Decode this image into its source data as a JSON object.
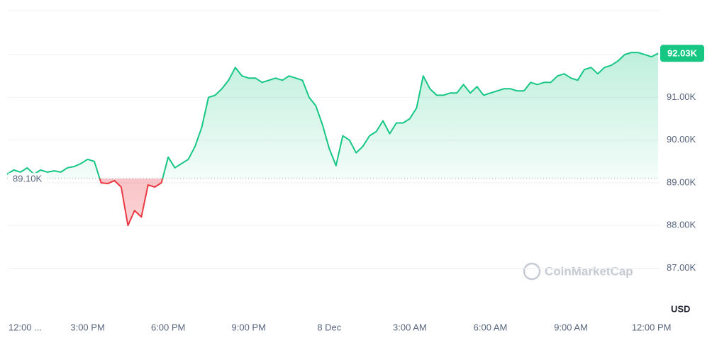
{
  "chart_data": {
    "type": "line",
    "x": [
      0,
      0.25,
      0.5,
      0.75,
      1,
      1.25,
      1.5,
      1.75,
      2,
      2.25,
      2.5,
      2.75,
      3,
      3.25,
      3.5,
      3.75,
      4,
      4.25,
      4.5,
      4.75,
      5,
      5.25,
      5.5,
      5.75,
      6,
      6.25,
      6.5,
      6.75,
      7,
      7.25,
      7.5,
      7.75,
      8,
      8.25,
      8.5,
      8.75,
      9,
      9.25,
      9.5,
      9.75,
      10,
      10.25,
      10.5,
      10.75,
      11,
      11.25,
      11.5,
      11.75,
      12,
      12.25,
      12.5,
      12.75,
      13,
      13.25,
      13.5,
      13.75,
      14,
      14.25,
      14.5,
      14.75,
      15,
      15.25,
      15.5,
      15.75,
      16,
      16.25,
      16.5,
      16.75,
      17,
      17.25,
      17.5,
      17.75,
      18,
      18.25,
      18.5,
      18.75,
      19,
      19.25,
      19.5,
      19.75,
      20,
      20.25,
      20.5,
      20.75,
      21,
      21.25,
      21.5,
      21.75,
      22,
      22.25,
      22.5,
      22.75,
      23,
      23.25,
      23.5,
      23.75,
      24,
      24.25
    ],
    "values": [
      89200,
      89300,
      89250,
      89350,
      89200,
      89300,
      89250,
      89280,
      89250,
      89350,
      89380,
      89450,
      89550,
      89500,
      89000,
      88980,
      89050,
      88900,
      88000,
      88350,
      88200,
      88950,
      88900,
      89000,
      89600,
      89350,
      89450,
      89550,
      89850,
      90300,
      91000,
      91050,
      91200,
      91400,
      91700,
      91500,
      91450,
      91450,
      91350,
      91400,
      91450,
      91400,
      91500,
      91450,
      91400,
      91000,
      90800,
      90350,
      89800,
      89400,
      90100,
      90000,
      89700,
      89850,
      90100,
      90200,
      90450,
      90150,
      90400,
      90400,
      90500,
      90750,
      91500,
      91200,
      91050,
      91050,
      91100,
      91100,
      91300,
      91100,
      91250,
      91050,
      91100,
      91150,
      91200,
      91200,
      91150,
      91150,
      91350,
      91300,
      91350,
      91350,
      91500,
      91550,
      91450,
      91400,
      91650,
      91700,
      91550,
      91700,
      91750,
      91850,
      92000,
      92050,
      92050,
      92000,
      91950,
      92030
    ],
    "xlim": [
      0,
      24.3
    ],
    "xticks": [
      {
        "value": 0,
        "label": "12:00 ..."
      },
      {
        "value": 3,
        "label": "3:00 PM"
      },
      {
        "value": 6,
        "label": "6:00 PM"
      },
      {
        "value": 9,
        "label": "9:00 PM"
      },
      {
        "value": 12,
        "label": "8 Dec"
      },
      {
        "value": 15,
        "label": "3:00 AM"
      },
      {
        "value": 18,
        "label": "6:00 AM"
      },
      {
        "value": 21,
        "label": "9:00 AM"
      },
      {
        "value": 24,
        "label": "12:00 PM"
      }
    ],
    "ylim": [
      85980,
      93030
    ],
    "yticks": [
      {
        "value": 87000,
        "label": "87.00K"
      },
      {
        "value": 88000,
        "label": "88.00K"
      },
      {
        "value": 89000,
        "label": "89.00K"
      },
      {
        "value": 90000,
        "label": "90.00K"
      },
      {
        "value": 91000,
        "label": "91.00K"
      },
      {
        "value": 92000,
        "label": "92.00K"
      }
    ],
    "y_axis_label": "USD",
    "baseline": {
      "value": 89100,
      "label": "89.10K"
    },
    "last_price": {
      "value": 92030,
      "label": "92.03K"
    },
    "up_color": "#16c784",
    "down_color": "#ea3943",
    "grid": true,
    "watermark": "CoinMarketCap"
  }
}
